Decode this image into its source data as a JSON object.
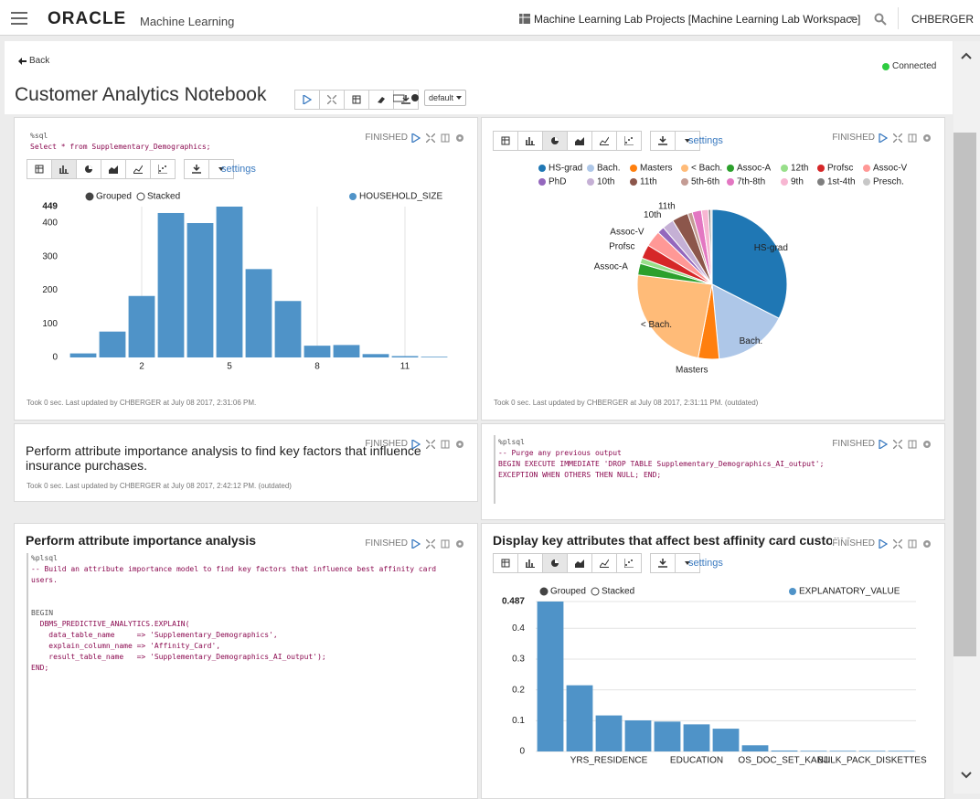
{
  "header": {
    "logo": "ORACLE",
    "product": "Machine Learning",
    "project": "Machine Learning Lab Projects [Machine Learning Lab Workspace]",
    "user": "CHBERGER"
  },
  "notebook": {
    "back": "Back",
    "status": "Connected",
    "title": "Customer Analytics Notebook",
    "layout": "default"
  },
  "paragraphs": [
    {
      "code": [
        "%sql",
        "Select * from Supplementary_Demographics;"
      ],
      "status": "FINISHED",
      "settings": "settings",
      "footer": "Took 0 sec. Last updated by CHBERGER at July 08 2017, 2:31:06 PM."
    },
    {
      "status": "FINISHED",
      "settings": "settings",
      "footer": "Took 0 sec. Last updated by CHBERGER at July 08 2017, 2:31:11 PM. (outdated)"
    },
    {
      "text": "Perform attribute importance analysis to find key factors that influence insurance purchases.",
      "status": "FINISHED",
      "footer": "Took 0 sec. Last updated by CHBERGER at July 08 2017, 2:42:12 PM. (outdated)"
    },
    {
      "code": [
        "%plsql",
        "-- Purge any previous output",
        "BEGIN EXECUTE IMMEDIATE 'DROP TABLE Supplementary_Demographics_AI_output';",
        "EXCEPTION WHEN OTHERS THEN NULL; END;"
      ],
      "status": "FINISHED"
    },
    {
      "title": "Perform attribute importance analysis",
      "status": "FINISHED",
      "code": [
        "%plsql",
        "-- Build an attribute importance model to find key factors that influence best affinity card",
        "users."
      ],
      "code2": [
        "BEGIN",
        "  DBMS_PREDICTIVE_ANALYTICS.EXPLAIN(",
        "    data_table_name     => 'Supplementary_Demographics',",
        "    explain_column_name => 'Affinity_Card',",
        "    result_table_name   => 'Supplementary_Demographics_AI_output');",
        "END;"
      ]
    },
    {
      "title": "Display key attributes that affect best affinity card custome",
      "status": "FINISHED",
      "settings": "settings"
    }
  ],
  "chart_data": [
    {
      "type": "bar",
      "x": [
        0,
        1,
        2,
        3,
        4,
        5,
        6,
        7,
        8,
        9,
        10,
        11,
        12
      ],
      "series": [
        {
          "name": "HOUSEHOLD_SIZE",
          "color": "#4f93c8",
          "values": [
            12,
            77,
            183,
            430,
            400,
            449,
            263,
            168,
            35,
            37,
            10,
            4,
            2
          ]
        }
      ],
      "xlim": [
        -0.5,
        12.5
      ],
      "xticks": [
        2,
        5,
        8,
        11
      ],
      "ylim": [
        0,
        449
      ],
      "yticks": [
        0,
        100,
        200,
        300,
        400,
        449
      ],
      "grid": "x",
      "modes": [
        "Grouped",
        "Stacked"
      ]
    },
    {
      "type": "pie",
      "categories": [
        "HS-grad",
        "Bach.",
        "Masters",
        "< Bach.",
        "Assoc-A",
        "12th",
        "Profsc",
        "Assoc-V",
        "PhD",
        "10th",
        "11th",
        "5th-6th",
        "7th-8th",
        "9th",
        "1st-4th",
        "Presch."
      ],
      "values": [
        32.5,
        16,
        4.5,
        24,
        2.5,
        1.2,
        3,
        3.5,
        1.5,
        2.5,
        3.5,
        1,
        2,
        1.5,
        0.5,
        0.3
      ],
      "colors": [
        "#1f77b4",
        "#aec7e8",
        "#ff7f0e",
        "#ffbb78",
        "#2ca02c",
        "#98df8a",
        "#d62728",
        "#ff9896",
        "#9467bd",
        "#c5b0d5",
        "#8c564b",
        "#c49c94",
        "#e377c2",
        "#f7b6d2",
        "#7f7f7f",
        "#c7c7c7"
      ]
    },
    {
      "type": "bar",
      "categories": [
        null,
        null,
        "YRS_RESIDENCE",
        null,
        null,
        "EDUCATION",
        null,
        null,
        "OS_DOC_SET_KANJI",
        null,
        null,
        "BULK_PACK_DISKETTES",
        null
      ],
      "series": [
        {
          "name": "EXPLANATORY_VALUE",
          "color": "#4f93c8",
          "values": [
            0.487,
            0.215,
            0.117,
            0.101,
            0.097,
            0.088,
            0.074,
            0.02,
            0.003,
            0.002,
            0.002,
            0.002,
            0.002
          ]
        }
      ],
      "ylim": [
        0,
        0.487
      ],
      "yticks": [
        0,
        0.1,
        0.2,
        0.3,
        0.4,
        0.487
      ],
      "grid": "y",
      "modes": [
        "Grouped",
        "Stacked"
      ]
    }
  ]
}
